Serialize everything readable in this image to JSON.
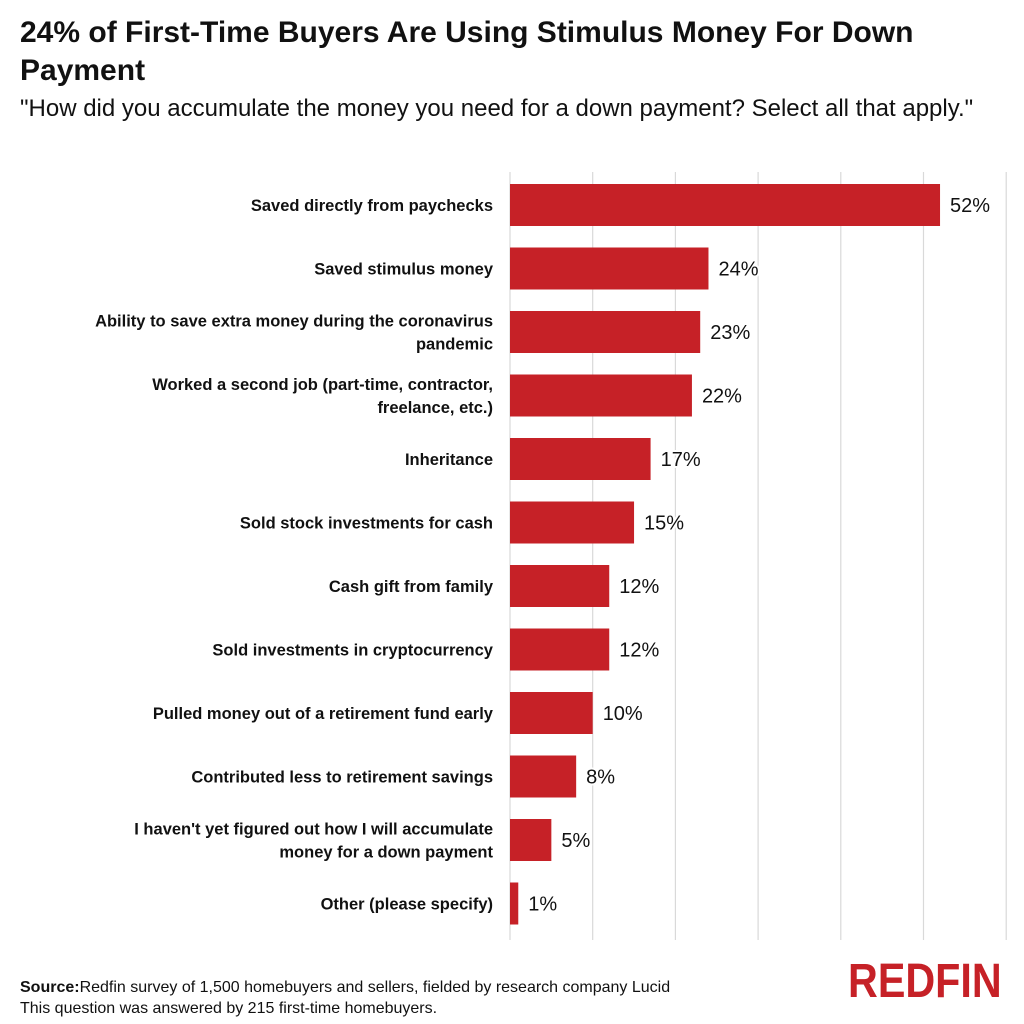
{
  "chart_data": {
    "type": "bar",
    "orientation": "horizontal",
    "title": "24% of First-Time Buyers Are Using Stimulus Money For Down Payment",
    "subtitle": "\"How did you accumulate the money you need for a down payment? Select all that apply.\"",
    "categories": [
      "Saved directly from paychecks",
      "Saved stimulus money",
      "Ability to save extra money during the coronavirus pandemic",
      "Worked a second job (part-time, contractor, freelance, etc.)",
      "Inheritance",
      "Sold stock investments for cash",
      "Cash gift from family",
      "Sold investments in cryptocurrency",
      "Pulled money out of a retirement fund early",
      "Contributed less to retirement savings",
      "I haven't yet figured out how I will accumulate money for a down payment",
      "Other (please specify)"
    ],
    "values": [
      52,
      24,
      23,
      22,
      17,
      15,
      12,
      12,
      10,
      8,
      5,
      1
    ],
    "value_labels": [
      "52%",
      "24%",
      "23%",
      "22%",
      "17%",
      "15%",
      "12%",
      "12%",
      "10%",
      "8%",
      "5%",
      "1%"
    ],
    "xlim": [
      0,
      60
    ],
    "grid": true,
    "bar_color": "#c62127"
  },
  "source": {
    "label": "Source:",
    "text": "Redfin survey of 1,500 homebuyers and sellers, fielded by research company Lucid",
    "note": "This question was answered by 215 first-time homebuyers."
  },
  "logo": {
    "text": "REDFIN",
    "color": "#c62127"
  }
}
